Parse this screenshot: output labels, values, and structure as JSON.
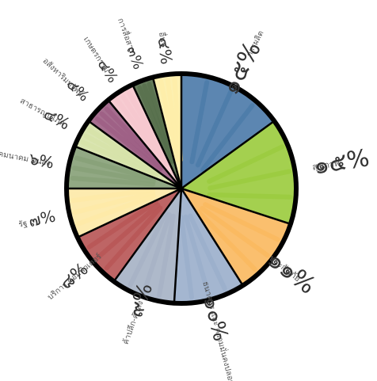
{
  "chart_data": {
    "type": "pie",
    "title": "",
    "start_angle_deg": 0,
    "direction": "clockwise",
    "slices": [
      {
        "label": "การผลิต",
        "value_label": "๑๕%",
        "value": 15,
        "color": "#4a79a8"
      },
      {
        "label": "สุขภาพ",
        "value_label": "๑๕%",
        "value": 15,
        "color": "#9acb3c"
      },
      {
        "label": "ประกันภัย",
        "value_label": "๑๑%",
        "value": 11,
        "color": "#f9b85e"
      },
      {
        "label": "ธนาคาร และ ความมั่นคงปลอดภัย",
        "value_label": "๑๐%",
        "value": 10,
        "color": "#9aaecb"
      },
      {
        "label": "ค้าปลีก-ค้าส่ง",
        "value_label": "๙%",
        "value": 9,
        "color": "#a5b1c4"
      },
      {
        "label": "บริการ คอมพิวเตอร์",
        "value_label": "๘%",
        "value": 8,
        "color": "#b75454"
      },
      {
        "label": "รัฐ",
        "value_label": "๗%",
        "value": 7,
        "color": "#fde9a6"
      },
      {
        "label": "คมนาคม ขนส่ง",
        "value_label": "๖%",
        "value": 6,
        "color": "#86a077"
      },
      {
        "label": "สาธารณูปโภค",
        "value_label": "๔%",
        "value": 4,
        "color": "#d6e2a8"
      },
      {
        "label": "อสังหาริมทรัพย์",
        "value_label": "๔%",
        "value": 4,
        "color": "#9c5e83"
      },
      {
        "label": "เกษตรกรรม",
        "value_label": "๔%",
        "value": 4,
        "color": "#f6c7cd"
      },
      {
        "label": "การสื่อสาร",
        "value_label": "๓%",
        "value": 3,
        "color": "#566f4b"
      },
      {
        "label": "อื่นๆ",
        "value_label": "๔%",
        "value": 4,
        "color": "#fdeea8"
      }
    ]
  }
}
